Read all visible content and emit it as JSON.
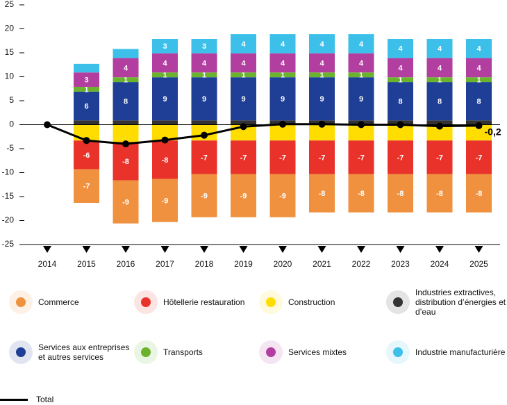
{
  "chart_data": {
    "type": "stacked-bar-line",
    "categories": [
      "2014",
      "2015",
      "2016",
      "2017",
      "2018",
      "2019",
      "2020",
      "2021",
      "2022",
      "2023",
      "2024",
      "2025"
    ],
    "ylim": [
      -25,
      25
    ],
    "yticks": [
      -25,
      -20,
      -15,
      -10,
      -5,
      0,
      5,
      10,
      15,
      20,
      25
    ],
    "series": [
      {
        "name": "Construction",
        "color": "#ffdd00",
        "values": [
          null,
          -3.3,
          -3.6,
          -3.3,
          -3.3,
          -3.3,
          -3.3,
          -3.3,
          -3.3,
          -3.3,
          -3.3,
          -3.3
        ],
        "value_labels": [
          null,
          null,
          null,
          null,
          null,
          null,
          null,
          null,
          null,
          null,
          null,
          null
        ]
      },
      {
        "name": "Hôtellerie restauration",
        "color": "#e8322a",
        "values": [
          null,
          -6,
          -8,
          -8,
          -7,
          -7,
          -7,
          -7,
          -7,
          -7,
          -7,
          -7
        ],
        "value_labels": [
          null,
          "-6",
          "-8",
          "-8",
          "-7",
          "-7",
          "-7",
          "-7",
          "-7",
          "-7",
          "-7",
          "-7"
        ]
      },
      {
        "name": "Commerce",
        "color": "#f0913f",
        "values": [
          null,
          -7,
          -9,
          -9,
          -9,
          -9,
          -9,
          -8,
          -8,
          -8,
          -8,
          -8
        ],
        "value_labels": [
          null,
          "-7",
          "-9",
          "-9",
          "-9",
          "-9",
          "-9",
          "-8",
          "-8",
          "-8",
          "-8",
          "-8"
        ]
      },
      {
        "name": "Industries extractives, distribution d’énergies et d’eau",
        "color": "#333333",
        "values": [
          null,
          0.9,
          0.9,
          0.9,
          0.9,
          0.9,
          0.9,
          0.9,
          0.9,
          0.9,
          0.9,
          0.9
        ],
        "value_labels": [
          null,
          null,
          null,
          null,
          null,
          null,
          null,
          null,
          null,
          null,
          null,
          null
        ]
      },
      {
        "name": "Services aux entreprises et autres services",
        "color": "#1f3f96",
        "values": [
          null,
          6,
          8,
          9,
          9,
          9,
          9,
          9,
          9,
          8,
          8,
          8
        ],
        "value_labels": [
          null,
          "6",
          "8",
          "9",
          "9",
          "9",
          "9",
          "9",
          "9",
          "8",
          "8",
          "8"
        ]
      },
      {
        "name": "Transports",
        "color": "#6ab42d",
        "values": [
          null,
          1,
          1,
          1,
          1,
          1,
          1,
          1,
          1,
          1,
          1,
          1
        ],
        "value_labels": [
          null,
          "1",
          "1",
          "1",
          "1",
          "1",
          "1",
          "1",
          "1",
          "1",
          "1",
          "1"
        ]
      },
      {
        "name": "Services mixtes",
        "color": "#b23fa0",
        "values": [
          null,
          3,
          4,
          4,
          4,
          4,
          4,
          4,
          4,
          4,
          4,
          4
        ],
        "value_labels": [
          null,
          "3",
          "4",
          "4",
          "4",
          "4",
          "4",
          "4",
          "4",
          "4",
          "4",
          "4"
        ]
      },
      {
        "name": "Industrie manufacturière",
        "color": "#3cc0ea",
        "values": [
          null,
          1.8,
          1.9,
          3,
          3,
          4,
          4,
          4,
          4,
          4,
          4,
          4
        ],
        "value_labels": [
          null,
          null,
          null,
          "3",
          "3",
          "4",
          "4",
          "4",
          "4",
          "4",
          "4",
          "4"
        ]
      }
    ],
    "line": {
      "name": "Total",
      "color": "#000000",
      "values": [
        0,
        -3.3,
        -4,
        -3.2,
        -2.2,
        -0.4,
        0.1,
        0.1,
        0,
        0,
        -0.3,
        -0.2
      ],
      "value_labels": [
        null,
        null,
        null,
        null,
        null,
        null,
        null,
        null,
        null,
        null,
        null,
        "-0,2"
      ]
    }
  }
}
